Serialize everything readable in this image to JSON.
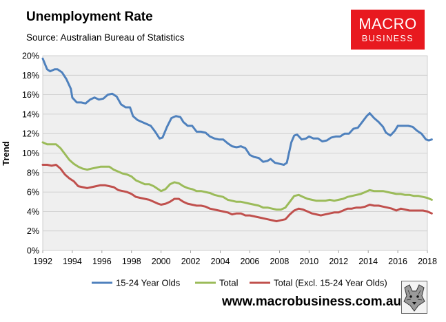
{
  "header": {
    "title": "Unemployment Rate",
    "subtitle": "Source: Australian Bureau of Statistics"
  },
  "logo": {
    "line1": "MACRO",
    "line2": "BUSINESS",
    "color": "#e8191f"
  },
  "footer": {
    "website": "www.macrobusiness.com.au",
    "emblem_icon": "wolf-logo-icon"
  },
  "chart_data": {
    "type": "line",
    "title": "Unemployment Rate",
    "ylabel": "Trend",
    "xlim": [
      1992,
      2018
    ],
    "ylim": [
      0,
      20
    ],
    "x_ticks": [
      "1992",
      "1994",
      "1996",
      "1998",
      "2000",
      "2002",
      "2004",
      "2006",
      "2008",
      "2010",
      "2012",
      "2014",
      "2016",
      "2018"
    ],
    "y_ticks": [
      "0%",
      "2%",
      "4%",
      "6%",
      "8%",
      "10%",
      "12%",
      "14%",
      "16%",
      "18%",
      "20%"
    ],
    "grid": true,
    "plot_background": "#efefef",
    "legend_position": "bottom",
    "series": [
      {
        "name": "15-24 Year Olds",
        "color": "#4f81bd",
        "points": [
          [
            1992.0,
            19.7
          ],
          [
            1992.3,
            18.6
          ],
          [
            1992.5,
            18.4
          ],
          [
            1992.8,
            18.6
          ],
          [
            1993.0,
            18.6
          ],
          [
            1993.3,
            18.3
          ],
          [
            1993.6,
            17.6
          ],
          [
            1993.9,
            16.6
          ],
          [
            1994.0,
            15.7
          ],
          [
            1994.3,
            15.2
          ],
          [
            1994.6,
            15.2
          ],
          [
            1994.9,
            15.1
          ],
          [
            1995.2,
            15.5
          ],
          [
            1995.5,
            15.7
          ],
          [
            1995.8,
            15.5
          ],
          [
            1996.1,
            15.6
          ],
          [
            1996.4,
            16.0
          ],
          [
            1996.7,
            16.1
          ],
          [
            1997.0,
            15.8
          ],
          [
            1997.3,
            15.0
          ],
          [
            1997.6,
            14.7
          ],
          [
            1997.9,
            14.7
          ],
          [
            1998.1,
            13.8
          ],
          [
            1998.4,
            13.4
          ],
          [
            1998.7,
            13.2
          ],
          [
            1999.0,
            13.0
          ],
          [
            1999.3,
            12.8
          ],
          [
            1999.6,
            12.2
          ],
          [
            1999.9,
            11.5
          ],
          [
            2000.1,
            11.6
          ],
          [
            2000.4,
            12.7
          ],
          [
            2000.7,
            13.6
          ],
          [
            2001.0,
            13.8
          ],
          [
            2001.3,
            13.7
          ],
          [
            2001.5,
            13.2
          ],
          [
            2001.8,
            12.8
          ],
          [
            2002.1,
            12.8
          ],
          [
            2002.4,
            12.2
          ],
          [
            2002.7,
            12.2
          ],
          [
            2003.0,
            12.1
          ],
          [
            2003.3,
            11.7
          ],
          [
            2003.6,
            11.5
          ],
          [
            2003.9,
            11.4
          ],
          [
            2004.2,
            11.4
          ],
          [
            2004.5,
            11.0
          ],
          [
            2004.8,
            10.7
          ],
          [
            2005.1,
            10.6
          ],
          [
            2005.4,
            10.7
          ],
          [
            2005.7,
            10.5
          ],
          [
            2006.0,
            9.8
          ],
          [
            2006.3,
            9.6
          ],
          [
            2006.6,
            9.5
          ],
          [
            2006.9,
            9.1
          ],
          [
            2007.2,
            9.2
          ],
          [
            2007.4,
            9.4
          ],
          [
            2007.7,
            9.0
          ],
          [
            2008.0,
            8.9
          ],
          [
            2008.3,
            8.8
          ],
          [
            2008.5,
            9.0
          ],
          [
            2008.8,
            11.1
          ],
          [
            2009.0,
            11.8
          ],
          [
            2009.2,
            11.9
          ],
          [
            2009.5,
            11.4
          ],
          [
            2009.8,
            11.5
          ],
          [
            2010.0,
            11.7
          ],
          [
            2010.3,
            11.5
          ],
          [
            2010.6,
            11.5
          ],
          [
            2010.9,
            11.2
          ],
          [
            2011.2,
            11.3
          ],
          [
            2011.5,
            11.6
          ],
          [
            2011.8,
            11.7
          ],
          [
            2012.1,
            11.7
          ],
          [
            2012.4,
            12.0
          ],
          [
            2012.7,
            12.0
          ],
          [
            2013.0,
            12.5
          ],
          [
            2013.3,
            12.6
          ],
          [
            2013.6,
            13.2
          ],
          [
            2013.9,
            13.8
          ],
          [
            2014.1,
            14.1
          ],
          [
            2014.4,
            13.6
          ],
          [
            2014.7,
            13.2
          ],
          [
            2015.0,
            12.7
          ],
          [
            2015.2,
            12.1
          ],
          [
            2015.5,
            11.8
          ],
          [
            2015.8,
            12.3
          ],
          [
            2016.0,
            12.8
          ],
          [
            2016.4,
            12.8
          ],
          [
            2016.7,
            12.8
          ],
          [
            2017.0,
            12.7
          ],
          [
            2017.3,
            12.3
          ],
          [
            2017.6,
            12.0
          ],
          [
            2017.9,
            11.4
          ],
          [
            2018.1,
            11.3
          ],
          [
            2018.3,
            11.4
          ]
        ]
      },
      {
        "name": "Total",
        "color": "#9bbb59",
        "points": [
          [
            1992.0,
            11.1
          ],
          [
            1992.3,
            10.9
          ],
          [
            1992.6,
            10.9
          ],
          [
            1992.9,
            10.9
          ],
          [
            1993.2,
            10.5
          ],
          [
            1993.5,
            9.9
          ],
          [
            1993.8,
            9.3
          ],
          [
            1994.1,
            8.9
          ],
          [
            1994.4,
            8.6
          ],
          [
            1994.7,
            8.4
          ],
          [
            1995.0,
            8.3
          ],
          [
            1995.3,
            8.4
          ],
          [
            1995.6,
            8.5
          ],
          [
            1995.9,
            8.6
          ],
          [
            1996.2,
            8.6
          ],
          [
            1996.5,
            8.6
          ],
          [
            1996.8,
            8.3
          ],
          [
            1997.1,
            8.1
          ],
          [
            1997.4,
            7.9
          ],
          [
            1997.7,
            7.8
          ],
          [
            1998.0,
            7.6
          ],
          [
            1998.3,
            7.2
          ],
          [
            1998.6,
            7.0
          ],
          [
            1998.9,
            6.8
          ],
          [
            1999.2,
            6.8
          ],
          [
            1999.5,
            6.6
          ],
          [
            1999.8,
            6.3
          ],
          [
            2000.0,
            6.1
          ],
          [
            2000.3,
            6.3
          ],
          [
            2000.6,
            6.8
          ],
          [
            2000.9,
            7.0
          ],
          [
            2001.2,
            6.9
          ],
          [
            2001.5,
            6.6
          ],
          [
            2001.8,
            6.4
          ],
          [
            2002.1,
            6.3
          ],
          [
            2002.4,
            6.1
          ],
          [
            2002.7,
            6.1
          ],
          [
            2003.0,
            6.0
          ],
          [
            2003.3,
            5.9
          ],
          [
            2003.6,
            5.7
          ],
          [
            2003.9,
            5.6
          ],
          [
            2004.2,
            5.5
          ],
          [
            2004.5,
            5.2
          ],
          [
            2004.8,
            5.1
          ],
          [
            2005.1,
            5.0
          ],
          [
            2005.4,
            5.0
          ],
          [
            2005.7,
            4.9
          ],
          [
            2006.0,
            4.8
          ],
          [
            2006.3,
            4.7
          ],
          [
            2006.6,
            4.6
          ],
          [
            2006.9,
            4.4
          ],
          [
            2007.2,
            4.4
          ],
          [
            2007.5,
            4.3
          ],
          [
            2007.8,
            4.2
          ],
          [
            2008.1,
            4.2
          ],
          [
            2008.4,
            4.4
          ],
          [
            2008.7,
            5.0
          ],
          [
            2009.0,
            5.6
          ],
          [
            2009.3,
            5.7
          ],
          [
            2009.6,
            5.5
          ],
          [
            2009.9,
            5.3
          ],
          [
            2010.2,
            5.2
          ],
          [
            2010.5,
            5.1
          ],
          [
            2010.8,
            5.1
          ],
          [
            2011.1,
            5.1
          ],
          [
            2011.4,
            5.2
          ],
          [
            2011.7,
            5.1
          ],
          [
            2012.0,
            5.2
          ],
          [
            2012.3,
            5.3
          ],
          [
            2012.6,
            5.5
          ],
          [
            2012.9,
            5.6
          ],
          [
            2013.2,
            5.7
          ],
          [
            2013.5,
            5.8
          ],
          [
            2013.8,
            6.0
          ],
          [
            2014.1,
            6.2
          ],
          [
            2014.4,
            6.1
          ],
          [
            2014.7,
            6.1
          ],
          [
            2015.0,
            6.1
          ],
          [
            2015.3,
            6.0
          ],
          [
            2015.6,
            5.9
          ],
          [
            2015.9,
            5.8
          ],
          [
            2016.2,
            5.8
          ],
          [
            2016.5,
            5.7
          ],
          [
            2016.8,
            5.7
          ],
          [
            2017.1,
            5.6
          ],
          [
            2017.4,
            5.6
          ],
          [
            2017.7,
            5.5
          ],
          [
            2018.0,
            5.4
          ],
          [
            2018.3,
            5.2
          ]
        ]
      },
      {
        "name": "Total (Excl. 15-24 Year Olds)",
        "color": "#c0504d",
        "points": [
          [
            1992.0,
            8.8
          ],
          [
            1992.3,
            8.8
          ],
          [
            1992.6,
            8.7
          ],
          [
            1992.9,
            8.8
          ],
          [
            1993.2,
            8.4
          ],
          [
            1993.5,
            7.8
          ],
          [
            1993.8,
            7.4
          ],
          [
            1994.1,
            7.1
          ],
          [
            1994.4,
            6.6
          ],
          [
            1994.7,
            6.5
          ],
          [
            1995.0,
            6.4
          ],
          [
            1995.3,
            6.5
          ],
          [
            1995.6,
            6.6
          ],
          [
            1995.9,
            6.7
          ],
          [
            1996.2,
            6.7
          ],
          [
            1996.5,
            6.6
          ],
          [
            1996.8,
            6.5
          ],
          [
            1997.1,
            6.2
          ],
          [
            1997.4,
            6.1
          ],
          [
            1997.7,
            6.0
          ],
          [
            1998.0,
            5.8
          ],
          [
            1998.3,
            5.5
          ],
          [
            1998.6,
            5.4
          ],
          [
            1998.9,
            5.3
          ],
          [
            1999.2,
            5.2
          ],
          [
            1999.5,
            5.0
          ],
          [
            1999.8,
            4.8
          ],
          [
            2000.0,
            4.7
          ],
          [
            2000.3,
            4.8
          ],
          [
            2000.6,
            5.0
          ],
          [
            2000.9,
            5.3
          ],
          [
            2001.2,
            5.3
          ],
          [
            2001.5,
            5.0
          ],
          [
            2001.8,
            4.8
          ],
          [
            2002.1,
            4.7
          ],
          [
            2002.4,
            4.6
          ],
          [
            2002.7,
            4.6
          ],
          [
            2003.0,
            4.5
          ],
          [
            2003.3,
            4.3
          ],
          [
            2003.6,
            4.2
          ],
          [
            2003.9,
            4.1
          ],
          [
            2004.2,
            4.0
          ],
          [
            2004.5,
            3.9
          ],
          [
            2004.8,
            3.7
          ],
          [
            2005.1,
            3.8
          ],
          [
            2005.4,
            3.8
          ],
          [
            2005.7,
            3.6
          ],
          [
            2006.0,
            3.6
          ],
          [
            2006.3,
            3.5
          ],
          [
            2006.6,
            3.4
          ],
          [
            2006.9,
            3.3
          ],
          [
            2007.2,
            3.2
          ],
          [
            2007.5,
            3.1
          ],
          [
            2007.8,
            3.0
          ],
          [
            2008.1,
            3.1
          ],
          [
            2008.4,
            3.2
          ],
          [
            2008.7,
            3.7
          ],
          [
            2009.0,
            4.1
          ],
          [
            2009.3,
            4.3
          ],
          [
            2009.6,
            4.2
          ],
          [
            2009.9,
            4.0
          ],
          [
            2010.2,
            3.8
          ],
          [
            2010.5,
            3.7
          ],
          [
            2010.8,
            3.6
          ],
          [
            2011.1,
            3.7
          ],
          [
            2011.4,
            3.8
          ],
          [
            2011.7,
            3.9
          ],
          [
            2012.0,
            3.9
          ],
          [
            2012.3,
            4.1
          ],
          [
            2012.6,
            4.3
          ],
          [
            2012.9,
            4.3
          ],
          [
            2013.2,
            4.4
          ],
          [
            2013.5,
            4.4
          ],
          [
            2013.8,
            4.5
          ],
          [
            2014.1,
            4.7
          ],
          [
            2014.4,
            4.6
          ],
          [
            2014.7,
            4.6
          ],
          [
            2015.0,
            4.5
          ],
          [
            2015.3,
            4.4
          ],
          [
            2015.6,
            4.3
          ],
          [
            2015.9,
            4.1
          ],
          [
            2016.2,
            4.3
          ],
          [
            2016.5,
            4.2
          ],
          [
            2016.8,
            4.1
          ],
          [
            2017.1,
            4.1
          ],
          [
            2017.4,
            4.1
          ],
          [
            2017.7,
            4.1
          ],
          [
            2018.0,
            4.0
          ],
          [
            2018.3,
            3.8
          ]
        ]
      }
    ]
  }
}
